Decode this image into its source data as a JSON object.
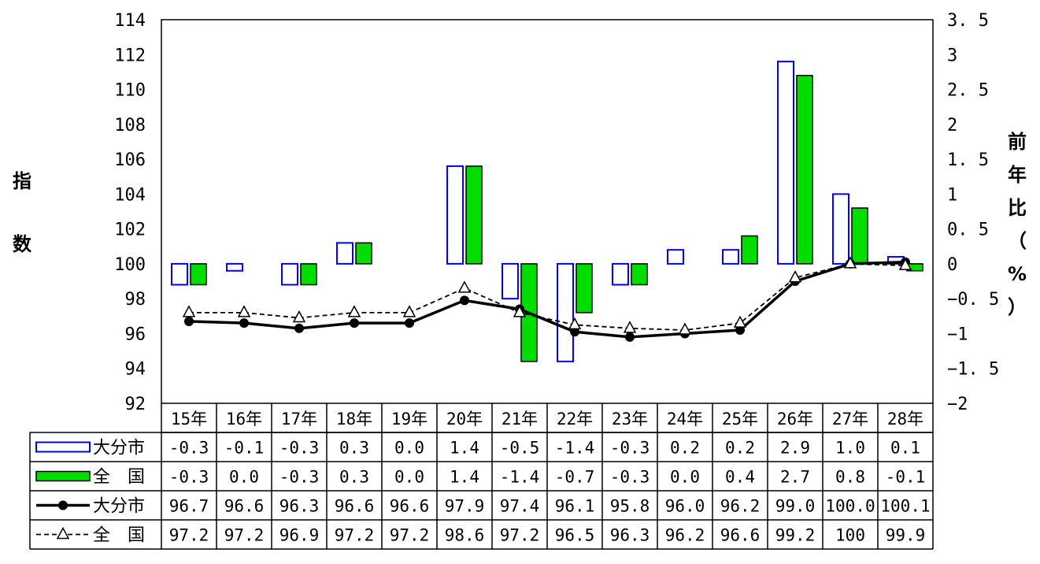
{
  "chart_data": {
    "type": "bar+line",
    "categories": [
      "15年",
      "16年",
      "17年",
      "18年",
      "19年",
      "20年",
      "21年",
      "22年",
      "23年",
      "24年",
      "25年",
      "26年",
      "27年",
      "28年"
    ],
    "left_axis": {
      "label_chars": [
        "指",
        "数"
      ],
      "ylim": [
        92,
        114
      ],
      "ticks": [
        "114",
        "112",
        "110",
        "108",
        "106",
        "104",
        "102",
        "100",
        "98",
        "96",
        "94",
        "92"
      ]
    },
    "right_axis": {
      "label_chars": [
        "前",
        "年",
        "比",
        "（",
        "%",
        "）"
      ],
      "ylim": [
        -2,
        3.5
      ],
      "ticks": [
        "3. 5",
        "3",
        "2. 5",
        "2",
        "1. 5",
        "1",
        "0. 5",
        "0",
        "−0. 5",
        "−1",
        "−1. 5",
        "−2"
      ]
    },
    "bar_series": [
      {
        "name": "大分市",
        "color": "#0000ff",
        "fill": "#ffffff",
        "values": [
          -0.3,
          -0.1,
          -0.3,
          0.3,
          0.0,
          1.4,
          -0.5,
          -1.4,
          -0.3,
          0.2,
          0.2,
          2.9,
          1.0,
          0.1
        ],
        "labels": [
          "-0.3",
          "-0.1",
          "-0.3",
          "0.3",
          "0.0",
          "1.4",
          "-0.5",
          "-1.4",
          "-0.3",
          "0.2",
          "0.2",
          "2.9",
          "1.0",
          "0.1"
        ]
      },
      {
        "name": "全　国",
        "color": "#000000",
        "fill": "#00dd00",
        "values": [
          -0.3,
          0.0,
          -0.3,
          0.3,
          0.0,
          1.4,
          -1.4,
          -0.7,
          -0.3,
          0.0,
          0.4,
          2.7,
          0.8,
          -0.1
        ],
        "labels": [
          "-0.3",
          "0.0",
          "-0.3",
          "0.3",
          "0.0",
          "1.4",
          "-1.4",
          "-0.7",
          "-0.3",
          "0.0",
          "0.4",
          "2.7",
          "0.8",
          "-0.1"
        ]
      }
    ],
    "line_series": [
      {
        "name": "大分市",
        "style": "solid",
        "marker": "circle",
        "values": [
          96.7,
          96.6,
          96.3,
          96.6,
          96.6,
          97.9,
          97.4,
          96.1,
          95.8,
          96.0,
          96.2,
          99.0,
          100.0,
          100.1
        ],
        "labels": [
          "96.7",
          "96.6",
          "96.3",
          "96.6",
          "96.6",
          "97.9",
          "97.4",
          "96.1",
          "95.8",
          "96.0",
          "96.2",
          "99.0",
          "100.0",
          "100.1"
        ]
      },
      {
        "name": "全　国",
        "style": "dashed",
        "marker": "triangle",
        "values": [
          97.2,
          97.2,
          96.9,
          97.2,
          97.2,
          98.6,
          97.2,
          96.5,
          96.3,
          96.2,
          96.6,
          99.2,
          100,
          99.9
        ],
        "labels": [
          "97.2",
          "97.2",
          "96.9",
          "97.2",
          "97.2",
          "98.6",
          "97.2",
          "96.5",
          "96.3",
          "96.2",
          "96.6",
          "99.2",
          "100",
          "99.9"
        ]
      }
    ]
  }
}
